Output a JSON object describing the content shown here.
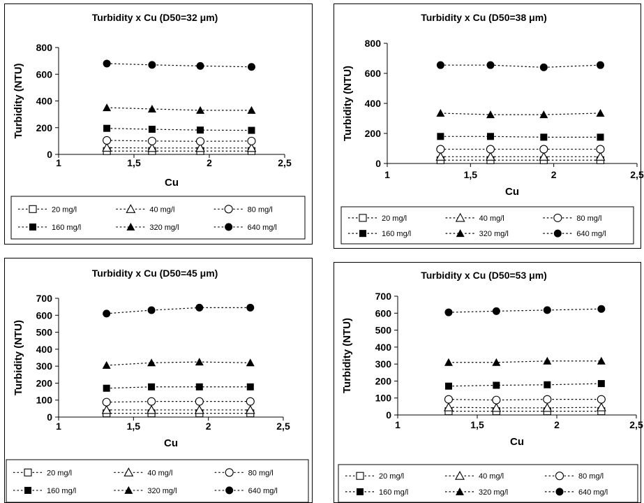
{
  "legend": [
    {
      "name": "20 mg/l",
      "marker": "square-open"
    },
    {
      "name": "40 mg/l",
      "marker": "triangle-open"
    },
    {
      "name": "80 mg/l",
      "marker": "circle-open"
    },
    {
      "name": "160 mg/l",
      "marker": "square-filled"
    },
    {
      "name": "320 mg/l",
      "marker": "triangle-filled"
    },
    {
      "name": "640 mg/l",
      "marker": "circle-filled"
    }
  ],
  "chart_data": [
    {
      "type": "scatter",
      "title": "Turbidity x Cu (D50=32 μm)",
      "xlabel": "Cu",
      "ylabel": "Turbidity (NTU)",
      "xlim": [
        1,
        2.5
      ],
      "ylim": [
        0,
        800
      ],
      "xticks": [
        "1",
        "1,5",
        "2",
        "2,5"
      ],
      "yticks": [
        "0",
        "200",
        "400",
        "600",
        "800"
      ],
      "x": [
        1.32,
        1.62,
        1.94,
        2.28
      ],
      "series": [
        {
          "name": "20 mg/l",
          "values": [
            25,
            25,
            25,
            25
          ]
        },
        {
          "name": "40 mg/l",
          "values": [
            50,
            48,
            48,
            48
          ]
        },
        {
          "name": "80 mg/l",
          "values": [
            105,
            100,
            98,
            100
          ]
        },
        {
          "name": "160 mg/l",
          "values": [
            195,
            188,
            182,
            180
          ]
        },
        {
          "name": "320 mg/l",
          "values": [
            350,
            340,
            330,
            330
          ]
        },
        {
          "name": "640 mg/l",
          "values": [
            680,
            670,
            662,
            655
          ]
        }
      ],
      "legend_position": "bottom"
    },
    {
      "type": "scatter",
      "title": "Turbidity x Cu (D50=38 μm)",
      "xlabel": "Cu",
      "ylabel": "Turbidity (NTU)",
      "xlim": [
        1,
        2.5
      ],
      "ylim": [
        0,
        800
      ],
      "xticks": [
        "1",
        "1,5",
        "2",
        "2,5"
      ],
      "yticks": [
        "0",
        "200",
        "400",
        "600",
        "800"
      ],
      "x": [
        1.32,
        1.62,
        1.94,
        2.28
      ],
      "series": [
        {
          "name": "20 mg/l",
          "values": [
            22,
            22,
            22,
            22
          ]
        },
        {
          "name": "40 mg/l",
          "values": [
            45,
            45,
            45,
            45
          ]
        },
        {
          "name": "80 mg/l",
          "values": [
            95,
            95,
            95,
            95
          ]
        },
        {
          "name": "160 mg/l",
          "values": [
            180,
            180,
            175,
            175
          ]
        },
        {
          "name": "320 mg/l",
          "values": [
            335,
            325,
            325,
            335
          ]
        },
        {
          "name": "640 mg/l",
          "values": [
            655,
            655,
            640,
            655
          ]
        }
      ],
      "legend_position": "bottom"
    },
    {
      "type": "scatter",
      "title": "Turbidity x Cu (D50=45 μm)",
      "xlabel": "Cu",
      "ylabel": "Turbidity (NTU)",
      "xlim": [
        1,
        2.5
      ],
      "ylim": [
        0,
        700
      ],
      "xticks": [
        "1",
        "1,5",
        "2",
        "2,5"
      ],
      "yticks": [
        "0",
        "100",
        "200",
        "300",
        "400",
        "500",
        "600",
        "700"
      ],
      "x": [
        1.32,
        1.62,
        1.94,
        2.28
      ],
      "series": [
        {
          "name": "20 mg/l",
          "values": [
            22,
            22,
            22,
            22
          ]
        },
        {
          "name": "40 mg/l",
          "values": [
            42,
            42,
            42,
            42
          ]
        },
        {
          "name": "80 mg/l",
          "values": [
            88,
            92,
            92,
            92
          ]
        },
        {
          "name": "160 mg/l",
          "values": [
            170,
            178,
            178,
            178
          ]
        },
        {
          "name": "320 mg/l",
          "values": [
            305,
            320,
            325,
            320
          ]
        },
        {
          "name": "640 mg/l",
          "values": [
            610,
            630,
            645,
            645
          ]
        }
      ],
      "legend_position": "bottom"
    },
    {
      "type": "scatter",
      "title": "Turbidity x Cu (D50=53 μm)",
      "xlabel": "Cu",
      "ylabel": "Turbidity  (NTU)",
      "xlim": [
        1,
        2.5
      ],
      "ylim": [
        0,
        700
      ],
      "xticks": [
        "1",
        "1,5",
        "2",
        "2,5"
      ],
      "yticks": [
        "0",
        "100",
        "200",
        "300",
        "400",
        "500",
        "600",
        "700"
      ],
      "x": [
        1.32,
        1.62,
        1.94,
        2.28
      ],
      "series": [
        {
          "name": "20 mg/l",
          "values": [
            22,
            22,
            22,
            22
          ]
        },
        {
          "name": "40 mg/l",
          "values": [
            45,
            42,
            42,
            45
          ]
        },
        {
          "name": "80 mg/l",
          "values": [
            92,
            88,
            92,
            92
          ]
        },
        {
          "name": "160 mg/l",
          "values": [
            170,
            175,
            178,
            185
          ]
        },
        {
          "name": "320 mg/l",
          "values": [
            310,
            310,
            318,
            318
          ]
        },
        {
          "name": "640 mg/l",
          "values": [
            605,
            612,
            618,
            625
          ]
        }
      ],
      "legend_position": "bottom"
    }
  ]
}
